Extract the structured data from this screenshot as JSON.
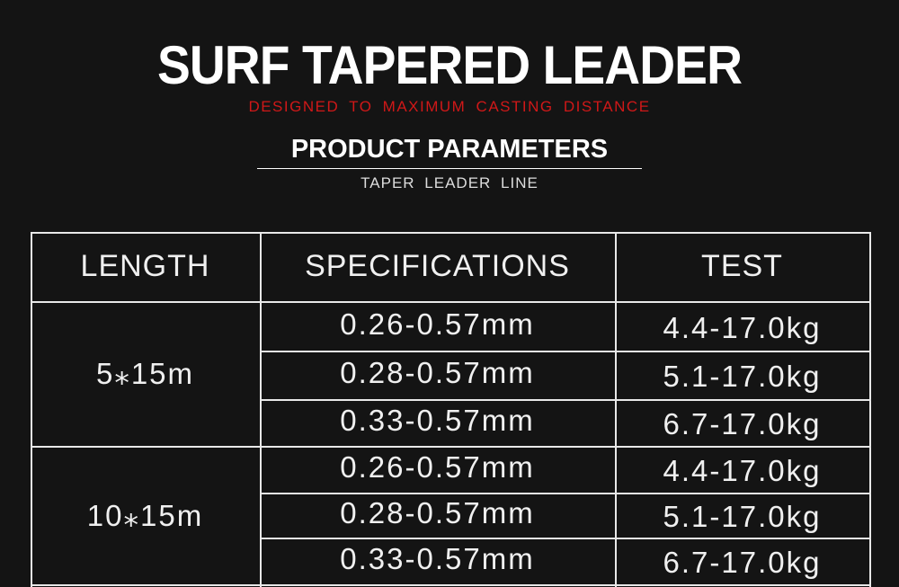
{
  "header": {
    "title": "SURF TAPERED LEADER",
    "subtitle": "DESIGNED TO MAXIMUM CASTING DISTANCE",
    "section_title": "PRODUCT PARAMETERS",
    "section_subtitle": "TAPER LEADER LINE"
  },
  "colors": {
    "background": "#141414",
    "subtitle": "#d01818",
    "text": "#ffffff"
  },
  "table": {
    "columns": [
      "LENGTH",
      "SPECIFICATIONS",
      "TEST"
    ],
    "groups": [
      {
        "length": "5⁎15m",
        "rows": [
          {
            "spec": "0.26-0.57mm",
            "test": "4.4-17.0kg"
          },
          {
            "spec": "0.28-0.57mm",
            "test": "5.1-17.0kg"
          },
          {
            "spec": "0.33-0.57mm",
            "test": "6.7-17.0kg"
          }
        ]
      },
      {
        "length": "10⁎15m",
        "rows": [
          {
            "spec": "0.26-0.57mm",
            "test": "4.4-17.0kg"
          },
          {
            "spec": "0.28-0.57mm",
            "test": "5.1-17.0kg"
          },
          {
            "spec": "0.33-0.57mm",
            "test": "6.7-17.0kg"
          }
        ]
      }
    ]
  }
}
